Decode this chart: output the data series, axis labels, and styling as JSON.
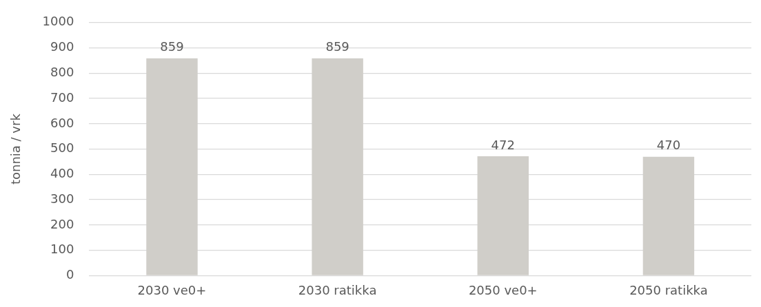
{
  "chart_data": {
    "type": "bar",
    "ylabel": "tonnia / vrk",
    "categories": [
      "2030 ve0+",
      "2030 ratikka",
      "2050 ve0+",
      "2050 ratikka"
    ],
    "values": [
      859,
      859,
      472,
      470
    ],
    "color": "#d0cec9",
    "ylim": [
      0,
      1000
    ],
    "yticks": [
      0,
      100,
      200,
      300,
      400,
      500,
      600,
      700,
      800,
      900,
      1000
    ],
    "grid": "y",
    "legend": false,
    "data_labels": true
  }
}
